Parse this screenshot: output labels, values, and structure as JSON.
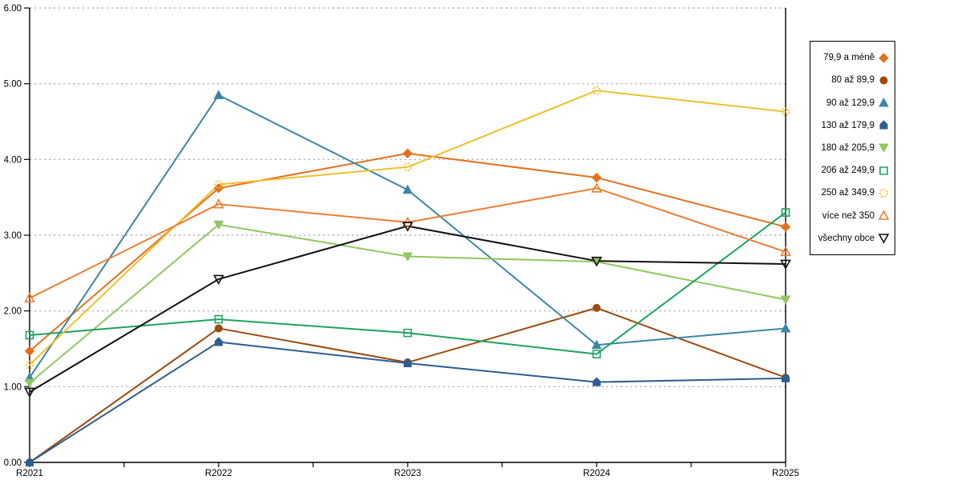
{
  "chart_data": {
    "type": "line",
    "title": "",
    "xlabel": "",
    "ylabel": "",
    "categories": [
      "R2021",
      "R2022",
      "R2023",
      "R2024",
      "R2025"
    ],
    "y_ticks": [
      "0.00",
      "1.00",
      "2.00",
      "3.00",
      "4.00",
      "5.00",
      "6.00"
    ],
    "ylim": [
      0,
      6
    ],
    "grid": "horizontal-dotted",
    "legend_position": "right-outside-boxed",
    "series": [
      {
        "name": "79,9 a méně",
        "marker": "diamond",
        "filled": true,
        "color": "#E2711D",
        "values": [
          1.47,
          3.62,
          4.08,
          3.76,
          3.11
        ]
      },
      {
        "name": "80 až 89,9",
        "marker": "circle",
        "filled": true,
        "color": "#9C4A0E",
        "values": [
          0.0,
          1.77,
          1.32,
          2.04,
          1.12
        ]
      },
      {
        "name": "90 až 129,9",
        "marker": "triangle-up",
        "filled": true,
        "color": "#3B87A5",
        "values": [
          1.12,
          4.85,
          3.6,
          1.55,
          1.77
        ]
      },
      {
        "name": "130 až 179,9",
        "marker": "pentagon",
        "filled": true,
        "color": "#2E5E91",
        "values": [
          0.0,
          1.59,
          1.31,
          1.06,
          1.11
        ]
      },
      {
        "name": "180 až 205,9",
        "marker": "triangle-down",
        "filled": true,
        "color": "#90C85E",
        "values": [
          1.05,
          3.14,
          2.72,
          2.65,
          2.15
        ]
      },
      {
        "name": "206 až 249,9",
        "marker": "square",
        "filled": false,
        "color": "#1CA35F",
        "values": [
          1.68,
          1.89,
          1.71,
          1.43,
          3.3
        ]
      },
      {
        "name": "250 až 349,9",
        "marker": "circle",
        "filled": false,
        "color": "#EFC02C",
        "values": [
          1.29,
          3.67,
          3.9,
          4.91,
          4.63
        ]
      },
      {
        "name": "více než 350",
        "marker": "triangle-up",
        "filled": false,
        "color": "#ED7D31",
        "values": [
          2.17,
          3.41,
          3.17,
          3.62,
          2.78
        ]
      },
      {
        "name": "všechny obce",
        "marker": "triangle-down",
        "filled": false,
        "color": "#111111",
        "values": [
          0.93,
          2.42,
          3.12,
          2.66,
          2.62
        ]
      }
    ],
    "colors": {
      "axis": "#000000",
      "gridline": "#ADADAD",
      "background": "#FFFFFF",
      "legend_border": "#000000"
    }
  }
}
